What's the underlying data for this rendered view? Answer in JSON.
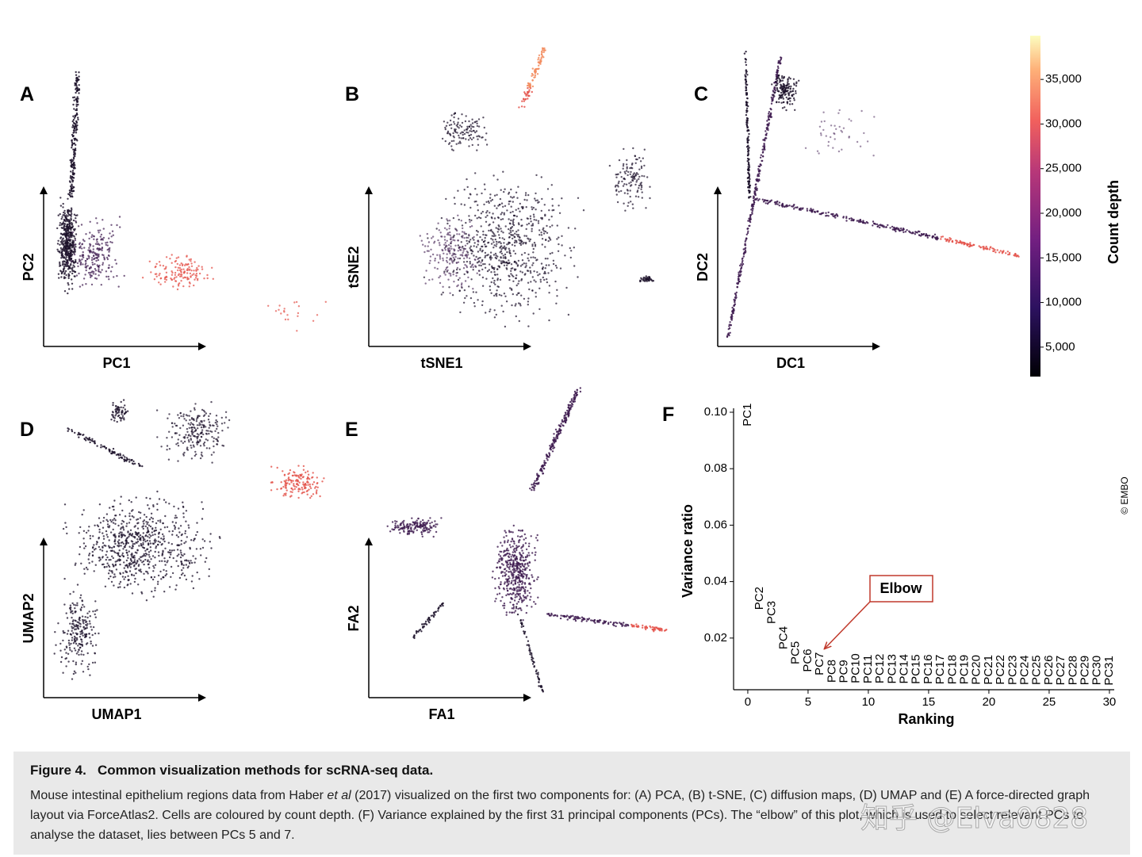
{
  "panels": [
    {
      "letter": "A",
      "xlabel": "PC1",
      "ylabel": "PC2"
    },
    {
      "letter": "B",
      "xlabel": "tSNE1",
      "ylabel": "tSNE2"
    },
    {
      "letter": "C",
      "xlabel": "DC1",
      "ylabel": "DC2"
    },
    {
      "letter": "D",
      "xlabel": "UMAP1",
      "ylabel": "UMAP2"
    },
    {
      "letter": "E",
      "xlabel": "FA1",
      "ylabel": "FA2"
    }
  ],
  "colorbar": {
    "label": "Count depth",
    "lim": [
      1700,
      39900
    ],
    "ticks": [
      {
        "value": 5000,
        "label": "5,000"
      },
      {
        "value": 10000,
        "label": "10,000"
      },
      {
        "value": 15000,
        "label": "15,000"
      },
      {
        "value": 20000,
        "label": "20,000"
      },
      {
        "value": 25000,
        "label": "25,000"
      },
      {
        "value": 30000,
        "label": "30,000"
      },
      {
        "value": 35000,
        "label": "35,000"
      }
    ]
  },
  "chart_data": {
    "type": "scatter",
    "panel": "F",
    "xlabel": "Ranking",
    "ylabel": "Variance ratio",
    "color": "#000000",
    "categories": [
      "PC1",
      "PC2",
      "PC3",
      "PC4",
      "PC5",
      "PC6",
      "PC7",
      "PC8",
      "PC9",
      "PC10",
      "PC11",
      "PC12",
      "PC13",
      "PC14",
      "PC15",
      "PC16",
      "PC17",
      "PC18",
      "PC19",
      "PC20",
      "PC21",
      "PC22",
      "PC23",
      "PC24",
      "PC25",
      "PC26",
      "PC27",
      "PC28",
      "PC29",
      "PC30",
      "PC31"
    ],
    "x": [
      0,
      1,
      2,
      3,
      4,
      5,
      6,
      7,
      8,
      9,
      10,
      11,
      12,
      13,
      14,
      15,
      16,
      17,
      18,
      19,
      20,
      21,
      22,
      23,
      24,
      25,
      26,
      27,
      28,
      29,
      30
    ],
    "values": [
      0.095,
      0.03,
      0.025,
      0.016,
      0.0107,
      0.008,
      0.0068,
      0.0042,
      0.0041,
      0.004,
      0.0039,
      0.0039,
      0.0038,
      0.0038,
      0.0037,
      0.0037,
      0.0036,
      0.0036,
      0.0036,
      0.0035,
      0.0035,
      0.0035,
      0.0034,
      0.0034,
      0.0034,
      0.0034,
      0.0033,
      0.0033,
      0.0033,
      0.0033,
      0.0032
    ],
    "xlim": [
      -1.18,
      30.4
    ],
    "ylim": [
      0.0017,
      0.1014
    ],
    "xticks": [
      0,
      5,
      10,
      15,
      20,
      25,
      30
    ],
    "yticks": [
      0.02,
      0.04,
      0.06,
      0.08,
      {
        "value": 0.1,
        "label": "0.10"
      }
    ],
    "annotation": "Elbow"
  },
  "credit": "© EMBO",
  "caption": {
    "title": "Figure 4.   Common visualization methods for scRNA-seq data.",
    "body": [
      "Mouse intestinal epithelium regions data from Haber ",
      "et al",
      " (2017) visualized on the first two components for: (A) PCA, (B) t-SNE, (C) diffusion maps, (D) UMAP and (E) A force-directed graph layout via ForceAtlas2. Cells are coloured by count depth. (F) Variance explained by the first 31 principal components (PCs). The “elbow” of this plot, which is used to select relevant PCs to analyse the dataset, lies between PCs 5 and 7."
    ]
  },
  "watermark": "知乎 @Elva0828"
}
